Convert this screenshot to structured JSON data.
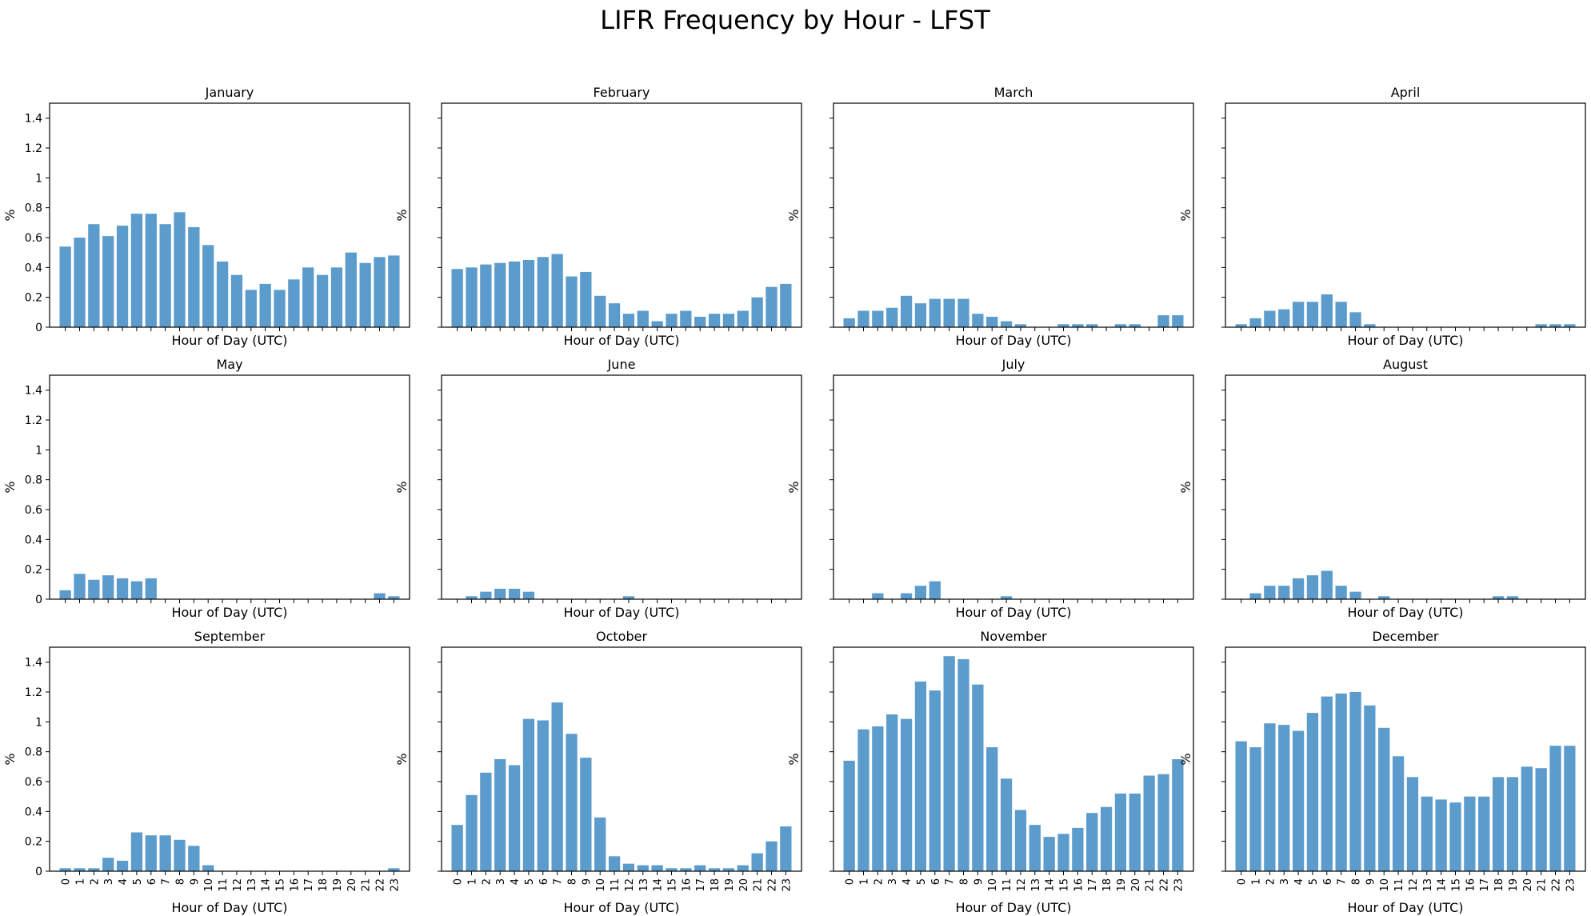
{
  "figure": {
    "title": "LIFR Frequency by Hour - LFST"
  },
  "chart_data": [
    {
      "type": "bar",
      "title": "January",
      "xlabel": "Hour of Day (UTC)",
      "ylabel": "%",
      "ylim": [
        0,
        1.5
      ],
      "yticks": [
        0,
        0.2,
        0.4,
        0.6,
        0.8,
        1.0,
        1.2,
        1.4
      ],
      "categories": [
        "0",
        "1",
        "2",
        "3",
        "4",
        "5",
        "6",
        "7",
        "8",
        "9",
        "10",
        "11",
        "12",
        "13",
        "14",
        "15",
        "16",
        "17",
        "18",
        "19",
        "20",
        "21",
        "22",
        "23"
      ],
      "values": [
        0.54,
        0.6,
        0.69,
        0.61,
        0.68,
        0.76,
        0.76,
        0.69,
        0.77,
        0.67,
        0.55,
        0.44,
        0.35,
        0.25,
        0.29,
        0.25,
        0.32,
        0.4,
        0.35,
        0.4,
        0.5,
        0.43,
        0.47,
        0.48
      ]
    },
    {
      "type": "bar",
      "title": "February",
      "xlabel": "Hour of Day (UTC)",
      "ylabel": "%",
      "ylim": [
        0,
        1.5
      ],
      "categories": [
        "0",
        "1",
        "2",
        "3",
        "4",
        "5",
        "6",
        "7",
        "8",
        "9",
        "10",
        "11",
        "12",
        "13",
        "14",
        "15",
        "16",
        "17",
        "18",
        "19",
        "20",
        "21",
        "22",
        "23"
      ],
      "values": [
        0.39,
        0.4,
        0.42,
        0.43,
        0.44,
        0.45,
        0.47,
        0.49,
        0.34,
        0.37,
        0.21,
        0.16,
        0.09,
        0.11,
        0.04,
        0.09,
        0.11,
        0.07,
        0.09,
        0.09,
        0.11,
        0.2,
        0.27,
        0.29
      ]
    },
    {
      "type": "bar",
      "title": "March",
      "xlabel": "Hour of Day (UTC)",
      "ylabel": "%",
      "ylim": [
        0,
        1.5
      ],
      "categories": [
        "0",
        "1",
        "2",
        "3",
        "4",
        "5",
        "6",
        "7",
        "8",
        "9",
        "10",
        "11",
        "12",
        "13",
        "14",
        "15",
        "16",
        "17",
        "18",
        "19",
        "20",
        "21",
        "22",
        "23"
      ],
      "values": [
        0.06,
        0.11,
        0.11,
        0.13,
        0.21,
        0.16,
        0.19,
        0.19,
        0.19,
        0.09,
        0.07,
        0.04,
        0.02,
        0,
        0,
        0.02,
        0.02,
        0.02,
        0,
        0.02,
        0.02,
        0,
        0.08,
        0.08
      ]
    },
    {
      "type": "bar",
      "title": "April",
      "xlabel": "Hour of Day (UTC)",
      "ylabel": "%",
      "ylim": [
        0,
        1.5
      ],
      "categories": [
        "0",
        "1",
        "2",
        "3",
        "4",
        "5",
        "6",
        "7",
        "8",
        "9",
        "10",
        "11",
        "12",
        "13",
        "14",
        "15",
        "16",
        "17",
        "18",
        "19",
        "20",
        "21",
        "22",
        "23"
      ],
      "values": [
        0.02,
        0.06,
        0.11,
        0.12,
        0.17,
        0.17,
        0.22,
        0.17,
        0.1,
        0.02,
        0,
        0,
        0,
        0,
        0,
        0,
        0,
        0,
        0,
        0,
        0,
        0.02,
        0.02,
        0.02
      ]
    },
    {
      "type": "bar",
      "title": "May",
      "xlabel": "Hour of Day (UTC)",
      "ylabel": "%",
      "ylim": [
        0,
        1.5
      ],
      "yticks": [
        0,
        0.2,
        0.4,
        0.6,
        0.8,
        1.0,
        1.2,
        1.4
      ],
      "categories": [
        "0",
        "1",
        "2",
        "3",
        "4",
        "5",
        "6",
        "7",
        "8",
        "9",
        "10",
        "11",
        "12",
        "13",
        "14",
        "15",
        "16",
        "17",
        "18",
        "19",
        "20",
        "21",
        "22",
        "23"
      ],
      "values": [
        0.06,
        0.17,
        0.13,
        0.16,
        0.14,
        0.12,
        0.14,
        0,
        0,
        0,
        0,
        0,
        0,
        0,
        0,
        0,
        0,
        0,
        0,
        0,
        0,
        0,
        0.04,
        0.02
      ]
    },
    {
      "type": "bar",
      "title": "June",
      "xlabel": "Hour of Day (UTC)",
      "ylabel": "%",
      "ylim": [
        0,
        1.5
      ],
      "categories": [
        "0",
        "1",
        "2",
        "3",
        "4",
        "5",
        "6",
        "7",
        "8",
        "9",
        "10",
        "11",
        "12",
        "13",
        "14",
        "15",
        "16",
        "17",
        "18",
        "19",
        "20",
        "21",
        "22",
        "23"
      ],
      "values": [
        0,
        0.02,
        0.05,
        0.07,
        0.07,
        0.05,
        0,
        0,
        0,
        0,
        0,
        0,
        0.02,
        0,
        0,
        0,
        0,
        0,
        0,
        0,
        0,
        0,
        0,
        0
      ]
    },
    {
      "type": "bar",
      "title": "July",
      "xlabel": "Hour of Day (UTC)",
      "ylabel": "%",
      "ylim": [
        0,
        1.5
      ],
      "categories": [
        "0",
        "1",
        "2",
        "3",
        "4",
        "5",
        "6",
        "7",
        "8",
        "9",
        "10",
        "11",
        "12",
        "13",
        "14",
        "15",
        "16",
        "17",
        "18",
        "19",
        "20",
        "21",
        "22",
        "23"
      ],
      "values": [
        0,
        0,
        0.04,
        0,
        0.04,
        0.09,
        0.12,
        0,
        0,
        0,
        0,
        0.02,
        0,
        0,
        0,
        0,
        0,
        0,
        0,
        0,
        0,
        0,
        0,
        0
      ]
    },
    {
      "type": "bar",
      "title": "August",
      "xlabel": "Hour of Day (UTC)",
      "ylabel": "%",
      "ylim": [
        0,
        1.5
      ],
      "categories": [
        "0",
        "1",
        "2",
        "3",
        "4",
        "5",
        "6",
        "7",
        "8",
        "9",
        "10",
        "11",
        "12",
        "13",
        "14",
        "15",
        "16",
        "17",
        "18",
        "19",
        "20",
        "21",
        "22",
        "23"
      ],
      "values": [
        0,
        0.04,
        0.09,
        0.09,
        0.14,
        0.16,
        0.19,
        0.09,
        0.05,
        0,
        0.02,
        0,
        0,
        0,
        0,
        0,
        0,
        0,
        0.02,
        0.02,
        0,
        0,
        0,
        0
      ]
    },
    {
      "type": "bar",
      "title": "September",
      "xlabel": "Hour of Day (UTC)",
      "ylabel": "%",
      "ylim": [
        0,
        1.5
      ],
      "yticks": [
        0,
        0.2,
        0.4,
        0.6,
        0.8,
        1.0,
        1.2,
        1.4
      ],
      "categories": [
        "0",
        "1",
        "2",
        "3",
        "4",
        "5",
        "6",
        "7",
        "8",
        "9",
        "10",
        "11",
        "12",
        "13",
        "14",
        "15",
        "16",
        "17",
        "18",
        "19",
        "20",
        "21",
        "22",
        "23"
      ],
      "values": [
        0.02,
        0.02,
        0.02,
        0.09,
        0.07,
        0.26,
        0.24,
        0.24,
        0.21,
        0.17,
        0.04,
        0,
        0,
        0,
        0,
        0,
        0,
        0,
        0,
        0,
        0,
        0,
        0,
        0.02
      ]
    },
    {
      "type": "bar",
      "title": "October",
      "xlabel": "Hour of Day (UTC)",
      "ylabel": "%",
      "ylim": [
        0,
        1.5
      ],
      "categories": [
        "0",
        "1",
        "2",
        "3",
        "4",
        "5",
        "6",
        "7",
        "8",
        "9",
        "10",
        "11",
        "12",
        "13",
        "14",
        "15",
        "16",
        "17",
        "18",
        "19",
        "20",
        "21",
        "22",
        "23"
      ],
      "values": [
        0.31,
        0.51,
        0.66,
        0.75,
        0.71,
        1.02,
        1.01,
        1.13,
        0.92,
        0.76,
        0.36,
        0.1,
        0.05,
        0.04,
        0.04,
        0.02,
        0.02,
        0.04,
        0.02,
        0.02,
        0.04,
        0.12,
        0.2,
        0.3
      ]
    },
    {
      "type": "bar",
      "title": "November",
      "xlabel": "Hour of Day (UTC)",
      "ylabel": "%",
      "ylim": [
        0,
        1.5
      ],
      "categories": [
        "0",
        "1",
        "2",
        "3",
        "4",
        "5",
        "6",
        "7",
        "8",
        "9",
        "10",
        "11",
        "12",
        "13",
        "14",
        "15",
        "16",
        "17",
        "18",
        "19",
        "20",
        "21",
        "22",
        "23"
      ],
      "values": [
        0.74,
        0.95,
        0.97,
        1.05,
        1.02,
        1.27,
        1.21,
        1.44,
        1.42,
        1.25,
        0.83,
        0.62,
        0.41,
        0.31,
        0.23,
        0.25,
        0.29,
        0.39,
        0.43,
        0.52,
        0.52,
        0.64,
        0.65,
        0.75
      ]
    },
    {
      "type": "bar",
      "title": "December",
      "xlabel": "Hour of Day (UTC)",
      "ylabel": "%",
      "ylim": [
        0,
        1.5
      ],
      "categories": [
        "0",
        "1",
        "2",
        "3",
        "4",
        "5",
        "6",
        "7",
        "8",
        "9",
        "10",
        "11",
        "12",
        "13",
        "14",
        "15",
        "16",
        "17",
        "18",
        "19",
        "20",
        "21",
        "22",
        "23"
      ],
      "values": [
        0.87,
        0.83,
        0.99,
        0.98,
        0.94,
        1.06,
        1.17,
        1.19,
        1.2,
        1.11,
        0.96,
        0.77,
        0.63,
        0.5,
        0.48,
        0.46,
        0.5,
        0.5,
        0.63,
        0.63,
        0.7,
        0.69,
        0.84,
        0.84
      ]
    }
  ],
  "style": {
    "bar_color": "#5b9ccc",
    "axis_color": "#000000"
  }
}
